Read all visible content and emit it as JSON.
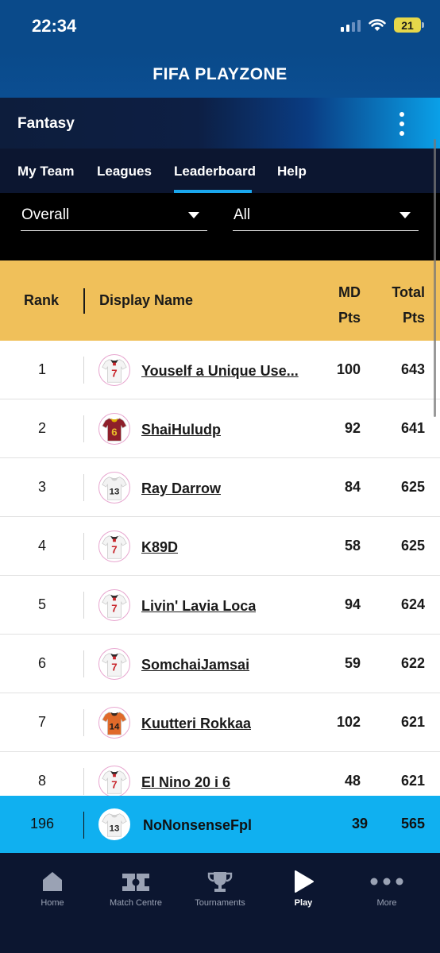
{
  "status_bar": {
    "time": "22:34",
    "battery": "21",
    "icons": [
      "signal-icon",
      "wifi-icon",
      "battery-icon"
    ]
  },
  "brand": {
    "logo_text": "FIFA PLAYZONE"
  },
  "section": {
    "title": "Fantasy",
    "menu_icon": "more-vertical-icon"
  },
  "tabs": [
    {
      "label": "My Team",
      "active": false
    },
    {
      "label": "Leagues",
      "active": false
    },
    {
      "label": "Leaderboard",
      "active": true
    },
    {
      "label": "Help",
      "active": false
    }
  ],
  "filters": [
    {
      "selected": "Overall",
      "icon": "chevron-down-icon"
    },
    {
      "selected": "All",
      "icon": "chevron-down-icon"
    }
  ],
  "table": {
    "headers": {
      "rank": "Rank",
      "name": "Display Name",
      "md_line1": "MD",
      "md_line2": "Pts",
      "total_line1": "Total",
      "total_line2": "Pts"
    },
    "rows": [
      {
        "rank": "1",
        "name": "Youself a Unique Use...",
        "md": "100",
        "total": "643",
        "shirt_number": "7",
        "shirt": "white-red"
      },
      {
        "rank": "2",
        "name": "ShaiHuludp",
        "md": "92",
        "total": "641",
        "shirt_number": "6",
        "shirt": "maroon"
      },
      {
        "rank": "3",
        "name": "Ray Darrow",
        "md": "84",
        "total": "625",
        "shirt_number": "13",
        "shirt": "white"
      },
      {
        "rank": "4",
        "name": "K89D",
        "md": "58",
        "total": "625",
        "shirt_number": "7",
        "shirt": "white-red"
      },
      {
        "rank": "5",
        "name": "Livin' Lavia Loca",
        "md": "94",
        "total": "624",
        "shirt_number": "7",
        "shirt": "white-red"
      },
      {
        "rank": "6",
        "name": "SomchaiJamsai",
        "md": "59",
        "total": "622",
        "shirt_number": "7",
        "shirt": "white-red"
      },
      {
        "rank": "7",
        "name": "Kuutteri Rokkaa",
        "md": "102",
        "total": "621",
        "shirt_number": "14",
        "shirt": "orange"
      },
      {
        "rank": "8",
        "name": "El Nino 20 i 6",
        "md": "48",
        "total": "621",
        "shirt_number": "7",
        "shirt": "white-red"
      }
    ],
    "current_user": {
      "rank": "196",
      "name": "NoNonsenseFpl",
      "md": "39",
      "total": "565",
      "shirt_number": "13",
      "shirt": "white"
    }
  },
  "bottom_nav": [
    {
      "label": "Home",
      "icon": "home-icon",
      "active": false
    },
    {
      "label": "Match Centre",
      "icon": "pitch-icon",
      "active": false
    },
    {
      "label": "Tournaments",
      "icon": "trophy-icon",
      "active": false
    },
    {
      "label": "Play",
      "icon": "play-icon",
      "active": true
    },
    {
      "label": "More",
      "icon": "more-horizontal-icon",
      "active": false
    }
  ],
  "colors": {
    "header_blue": "#0a4a8a",
    "table_header": "#f0c05a",
    "highlight_row": "#10b0f0",
    "tab_accent": "#1aa7ee",
    "nav_bg": "#0c1630"
  }
}
